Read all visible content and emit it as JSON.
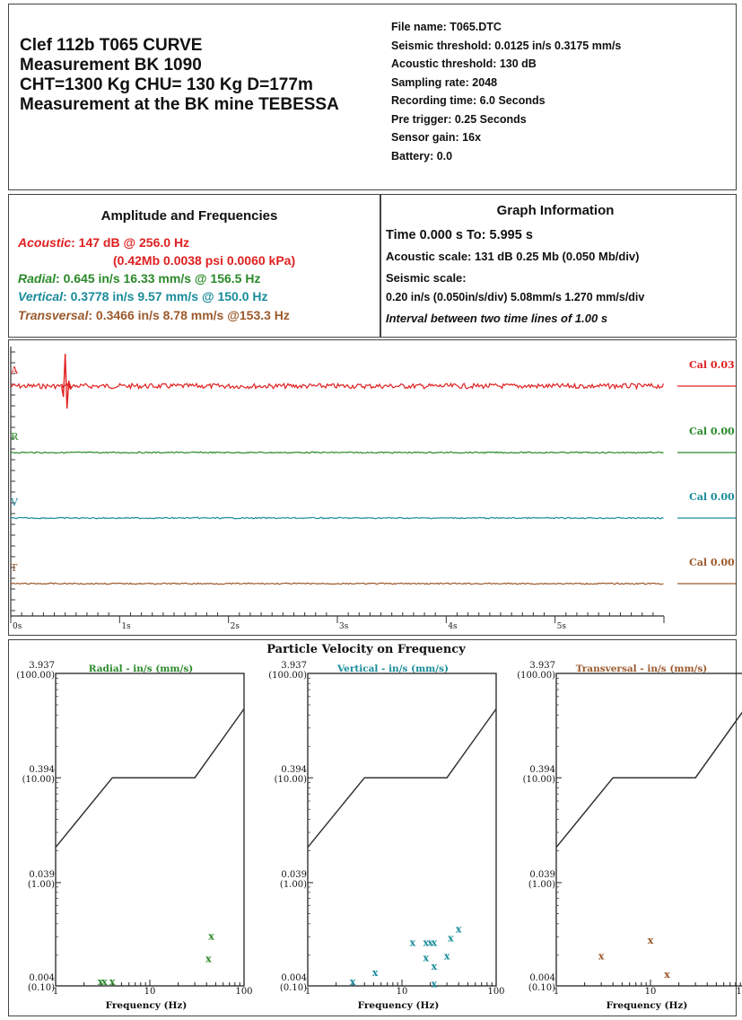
{
  "header": {
    "title_lines": [
      "Clef 112b T065 CURVE",
      "Measurement BK 1090",
      "CHT=1300 Kg  CHU= 130 Kg   D=177m",
      "Measurement at the BK mine TEBESSA"
    ],
    "info_lines": [
      "File name: T065.DTC",
      "Seismic threshold: 0.0125 in/s  0.3175 mm/s",
      "Acoustic threshold: 130 dB",
      "Sampling rate: 2048",
      "Recording time: 6.0 Seconds",
      "Pre trigger: 0.25 Seconds",
      "Sensor gain: 16x",
      "Battery: 0.0"
    ]
  },
  "amplitude": {
    "heading": "Amplitude and Frequencies",
    "acoustic_label": "Acoustic",
    "acoustic_value": ": 147 dB @ 256.0 Hz",
    "acoustic_value2": "(0.42Mb 0.0038 psi 0.0060 kPa)",
    "radial_label": "Radial",
    "radial_value": ": 0.645 in/s 16.33 mm/s @ 156.5 Hz",
    "vertical_label": "Vertical",
    "vertical_value": ": 0.3778 in/s 9.57 mm/s @ 150.0 Hz",
    "transversal_label": "Transversal",
    "transversal_value": ": 0.3466 in/s 8.78 mm/s @153.3 Hz"
  },
  "graph_info": {
    "heading": "Graph Information",
    "time_line": "Time 0.000 s To: 5.995 s",
    "acoustic_scale": "Acoustic scale: 131 dB 0.25 Mb (0.050 Mb/div)",
    "seismic_label": "Seismic scale:",
    "seismic_scale": "0.20 in/s (0.050in/s/div) 5.08mm/s 1.270 mm/s/div",
    "interval": "Interval between two time lines of 1.00 s"
  },
  "colors": {
    "acoustic": "#e02020",
    "radial": "#2a8a2a",
    "vertical": "#1a8c9c",
    "transversal": "#9c5a2c"
  },
  "chart_data": [
    {
      "type": "line",
      "x_ticks": [
        "0s",
        "1s",
        "2s",
        "3s",
        "4s",
        "5s"
      ],
      "xlim": [
        0,
        6.0
      ],
      "series": [
        {
          "name": "A",
          "cal": "Cal 0.03",
          "color": "#e02020",
          "peak_time": 0.5
        },
        {
          "name": "R",
          "cal": "Cal 0.00",
          "color": "#2a8a2a"
        },
        {
          "name": "V",
          "cal": "Cal 0.00",
          "color": "#1a8c9c"
        },
        {
          "name": "T",
          "cal": "Cal 0.00",
          "color": "#9c5a2c"
        }
      ]
    },
    {
      "type": "scatter",
      "title": "Particle Velocity on Frequency",
      "xscale": "log",
      "yscale": "log",
      "xlim": [
        1,
        100
      ],
      "ylim": [
        0.004,
        3.937
      ],
      "y_ticks": [
        {
          "v": 3.937,
          "a": "3.937",
          "b": "(100.00)"
        },
        {
          "v": 0.394,
          "a": "0.394",
          "b": "(10.00)"
        },
        {
          "v": 0.039,
          "a": "0.039",
          "b": "(1.00)"
        },
        {
          "v": 0.004,
          "a": "0.004",
          "b": "(0.10)"
        }
      ],
      "x_tick_labels": [
        {
          "v": 1,
          "t": "1"
        },
        {
          "v": 10,
          "t": "10"
        },
        {
          "v": 100,
          "t": "100"
        }
      ],
      "xlabel": "Frequency (Hz)",
      "limit_curve": {
        "x": [
          1,
          4,
          30,
          100
        ],
        "y": [
          0.085,
          0.394,
          0.394,
          1.8
        ]
      },
      "panels": [
        {
          "subtitle": "Radial - in/s (mm/s)",
          "color": "#2a8a2a",
          "points": [
            {
              "x": 3.0,
              "y": 0.0044
            },
            {
              "x": 3.3,
              "y": 0.0044
            },
            {
              "x": 4.0,
              "y": 0.0044
            },
            {
              "x": 42,
              "y": 0.0073
            },
            {
              "x": 45,
              "y": 0.012
            }
          ]
        },
        {
          "subtitle": "Vertical - in/s (mm/s)",
          "color": "#1a8c9c",
          "points": [
            {
              "x": 3.0,
              "y": 0.0044
            },
            {
              "x": 5.2,
              "y": 0.0054
            },
            {
              "x": 13,
              "y": 0.0105
            },
            {
              "x": 18,
              "y": 0.0105
            },
            {
              "x": 20,
              "y": 0.0105
            },
            {
              "x": 22,
              "y": 0.0105
            },
            {
              "x": 18,
              "y": 0.0075
            },
            {
              "x": 22,
              "y": 0.0062
            },
            {
              "x": 22,
              "y": 0.0042
            },
            {
              "x": 30,
              "y": 0.0078
            },
            {
              "x": 33,
              "y": 0.0115
            },
            {
              "x": 40,
              "y": 0.014
            }
          ]
        },
        {
          "subtitle": "Transversal - in/s (mm/s)",
          "color": "#9c5a2c",
          "points": [
            {
              "x": 3.0,
              "y": 0.0078
            },
            {
              "x": 10,
              "y": 0.011
            },
            {
              "x": 15,
              "y": 0.0052
            }
          ]
        }
      ]
    }
  ]
}
